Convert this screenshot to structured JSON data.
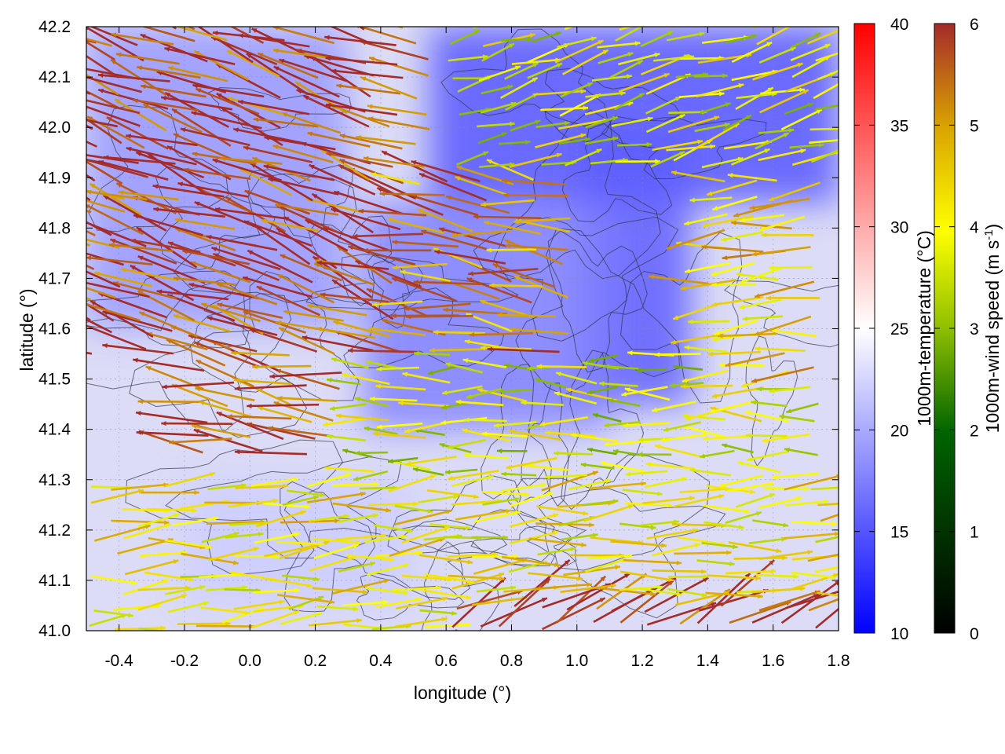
{
  "chart_data": {
    "type": "heatmap",
    "subtype": "wind vector field with temperature shading and contour overlay",
    "xlabel": "longitude (°)",
    "ylabel": "latitude (°)",
    "xlim": [
      -0.5,
      1.8
    ],
    "ylim": [
      41.0,
      42.2
    ],
    "x_ticks": [
      "-0.4",
      "-0.2",
      "0.0",
      "0.2",
      "0.4",
      "0.6",
      "0.8",
      "1.0",
      "1.2",
      "1.4",
      "1.6",
      "1.8"
    ],
    "y_ticks": [
      "41.0",
      "41.1",
      "41.2",
      "41.3",
      "41.4",
      "41.5",
      "41.6",
      "41.7",
      "41.8",
      "41.9",
      "42.0",
      "42.1",
      "42.2"
    ],
    "grid": true,
    "temperature_colorbar": {
      "label": "1000m-temperature (°C)",
      "range": [
        10,
        40
      ],
      "ticks": [
        "10",
        "15",
        "20",
        "25",
        "30",
        "35",
        "40"
      ],
      "colors": [
        "#0000ff",
        "#ffffff",
        "#ff0000"
      ]
    },
    "windspeed_colorbar": {
      "label_main": "1000m-wind speed (m s",
      "label_sup": "-1",
      "label_end": ")",
      "range": [
        0,
        6
      ],
      "ticks": [
        "0",
        "1",
        "2",
        "3",
        "4",
        "5",
        "6"
      ],
      "colors": [
        "#000000",
        "#006400",
        "#8fbf00",
        "#ffff00",
        "#d9a400",
        "#a52a2a"
      ]
    },
    "temperature_regions": [
      {
        "lon": [
          0.55,
          1.8
        ],
        "lat": [
          41.85,
          42.2
        ],
        "temp": 15
      },
      {
        "lon": [
          1.0,
          1.35
        ],
        "lat": [
          41.45,
          42.0
        ],
        "temp": 15.5
      },
      {
        "lon": [
          0.35,
          1.1
        ],
        "lat": [
          41.4,
          41.85
        ],
        "temp": 17.5
      },
      {
        "lon": [
          -0.5,
          0.3
        ],
        "lat": [
          41.6,
          42.2
        ],
        "temp": 19
      },
      {
        "lon": [
          -0.2,
          0.5
        ],
        "lat": [
          41.05,
          41.3
        ],
        "temp": 22
      }
    ],
    "wind_regions": [
      {
        "lon": [
          -0.5,
          0.55
        ],
        "lat": [
          41.55,
          42.2
        ],
        "dir_deg": 160,
        "speed": 5.8
      },
      {
        "lon": [
          -0.2,
          0.6
        ],
        "lat": [
          41.35,
          41.55
        ],
        "dir_deg": 170,
        "speed": 5.6
      },
      {
        "lon": [
          0.5,
          1.0
        ],
        "lat": [
          41.55,
          41.9
        ],
        "dir_deg": 170,
        "speed": 5.0
      },
      {
        "lon": [
          0.3,
          1.8
        ],
        "lat": [
          41.3,
          41.55
        ],
        "dir_deg": 180,
        "speed": 3.2
      },
      {
        "lon": [
          1.4,
          1.8
        ],
        "lat": [
          41.5,
          41.9
        ],
        "dir_deg": 185,
        "speed": 4.2
      },
      {
        "lon": [
          -0.5,
          1.8
        ],
        "lat": [
          41.0,
          41.3
        ],
        "dir_deg": 5,
        "speed": 3.8
      },
      {
        "lon": [
          0.6,
          1.8
        ],
        "lat": [
          41.9,
          42.2
        ],
        "dir_deg": 15,
        "speed": 3.3
      },
      {
        "lon": [
          0.55,
          1.8
        ],
        "lat": [
          41.0,
          41.05
        ],
        "dir_deg": 30,
        "speed": 6.0
      }
    ]
  }
}
